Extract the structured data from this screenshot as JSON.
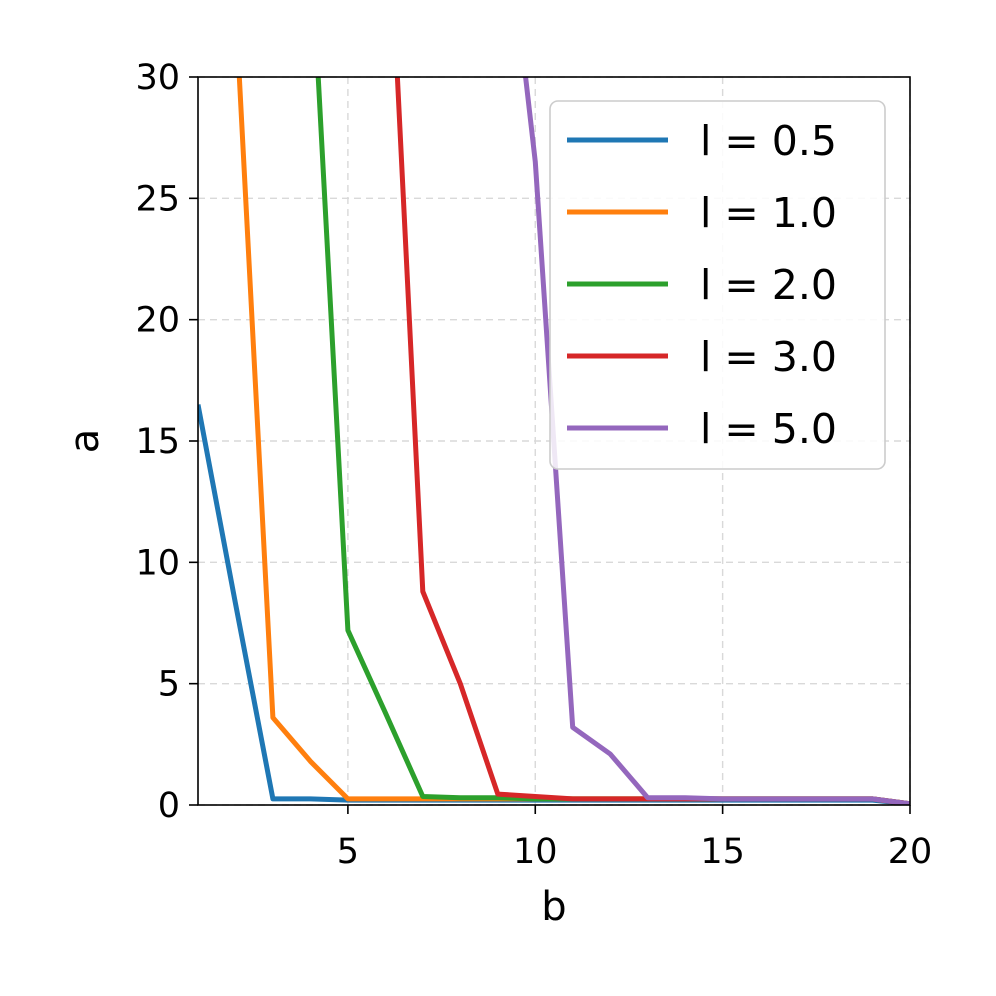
{
  "chart_data": {
    "type": "line",
    "xlabel": "b",
    "ylabel": "a",
    "xlim": [
      1,
      20
    ],
    "ylim": [
      0,
      30
    ],
    "xticks": [
      5,
      10,
      15,
      20
    ],
    "yticks": [
      0,
      5,
      10,
      15,
      20,
      25,
      30
    ],
    "grid": true,
    "legend_position": "top-right",
    "series": [
      {
        "name": "l = 0.5",
        "color": "#1f77b4",
        "x": [
          1,
          2,
          3,
          4,
          5,
          6,
          7,
          8,
          9,
          10,
          11,
          12,
          13,
          14,
          15,
          16,
          17,
          18,
          19,
          20
        ],
        "y": [
          16.5,
          8.3,
          0.25,
          0.25,
          0.2,
          0.2,
          0.2,
          0.2,
          0.2,
          0.2,
          0.2,
          0.2,
          0.2,
          0.2,
          0.2,
          0.2,
          0.2,
          0.2,
          0.2,
          0.05
        ]
      },
      {
        "name": "l = 1.0",
        "color": "#ff7f0e",
        "x": [
          2,
          3,
          4,
          5,
          6,
          7,
          8,
          9,
          10,
          11,
          12,
          13,
          14,
          15,
          16,
          17,
          18,
          19,
          20
        ],
        "y": [
          33.0,
          3.6,
          1.8,
          0.25,
          0.25,
          0.25,
          0.25,
          0.25,
          0.25,
          0.25,
          0.25,
          0.25,
          0.25,
          0.25,
          0.25,
          0.25,
          0.25,
          0.25,
          0.05
        ]
      },
      {
        "name": "l = 2.0",
        "color": "#2ca02c",
        "x": [
          4,
          5,
          6,
          7,
          8,
          9,
          10,
          11,
          12,
          13,
          14,
          15,
          16,
          17,
          18,
          19,
          20
        ],
        "y": [
          36.0,
          7.2,
          3.8,
          0.35,
          0.3,
          0.3,
          0.25,
          0.25,
          0.25,
          0.25,
          0.25,
          0.25,
          0.25,
          0.25,
          0.25,
          0.25,
          0.05
        ]
      },
      {
        "name": "l = 3.0",
        "color": "#d62728",
        "x": [
          6,
          7,
          8,
          9,
          10,
          11,
          12,
          13,
          14,
          15,
          16,
          17,
          18,
          19,
          20
        ],
        "y": [
          40.0,
          8.8,
          5.0,
          0.45,
          0.35,
          0.25,
          0.25,
          0.25,
          0.25,
          0.25,
          0.25,
          0.25,
          0.25,
          0.25,
          0.05
        ]
      },
      {
        "name": "l = 5.0",
        "color": "#9467bd",
        "x": [
          9,
          10,
          11,
          12,
          13,
          14,
          15,
          16,
          17,
          18,
          19,
          20
        ],
        "y": [
          40.0,
          26.5,
          3.2,
          2.1,
          0.3,
          0.3,
          0.25,
          0.25,
          0.25,
          0.25,
          0.25,
          0.05
        ]
      }
    ]
  }
}
